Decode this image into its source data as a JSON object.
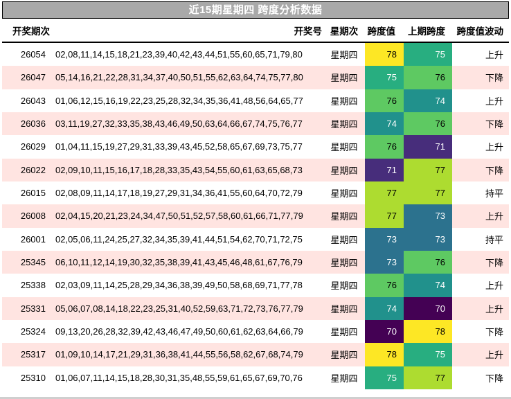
{
  "title": "近15期星期四 跨度分析数据",
  "chart_data": {
    "type": "table",
    "title": "近15期星期四 跨度分析数据",
    "columns": [
      "开奖期次",
      "开奖号",
      "星期次",
      "跨度值",
      "上期跨度",
      "跨度值波动"
    ],
    "rows": [
      {
        "period": "26054",
        "numbers": "02,08,11,14,15,18,21,23,39,40,42,43,44,51,55,60,65,71,79,80",
        "weekday": "星期四",
        "span": "78",
        "prev_span": "75",
        "fluctuation": "上升"
      },
      {
        "period": "26047",
        "numbers": "05,14,16,21,22,28,31,34,37,40,50,51,55,62,63,64,74,75,77,80",
        "weekday": "星期四",
        "span": "75",
        "prev_span": "76",
        "fluctuation": "下降"
      },
      {
        "period": "26043",
        "numbers": "01,06,12,15,16,19,22,23,25,28,32,34,35,36,41,48,56,64,65,77",
        "weekday": "星期四",
        "span": "76",
        "prev_span": "74",
        "fluctuation": "上升"
      },
      {
        "period": "26036",
        "numbers": "03,11,19,27,32,33,35,38,43,46,49,50,63,64,66,67,74,75,76,77",
        "weekday": "星期四",
        "span": "74",
        "prev_span": "76",
        "fluctuation": "下降"
      },
      {
        "period": "26029",
        "numbers": "01,04,11,15,19,27,29,31,33,39,43,45,52,58,65,67,69,73,75,77",
        "weekday": "星期四",
        "span": "76",
        "prev_span": "71",
        "fluctuation": "上升"
      },
      {
        "period": "26022",
        "numbers": "02,09,10,11,15,16,17,18,28,33,35,43,54,55,60,61,63,65,68,73",
        "weekday": "星期四",
        "span": "71",
        "prev_span": "77",
        "fluctuation": "下降"
      },
      {
        "period": "26015",
        "numbers": "02,08,09,11,14,17,18,19,27,29,31,34,36,41,55,60,64,70,72,79",
        "weekday": "星期四",
        "span": "77",
        "prev_span": "77",
        "fluctuation": "持平"
      },
      {
        "period": "26008",
        "numbers": "02,04,15,20,21,23,24,34,47,50,51,52,57,58,60,61,66,71,77,79",
        "weekday": "星期四",
        "span": "77",
        "prev_span": "73",
        "fluctuation": "上升"
      },
      {
        "period": "26001",
        "numbers": "02,05,06,11,24,25,27,32,34,35,39,41,44,51,54,62,70,71,72,75",
        "weekday": "星期四",
        "span": "73",
        "prev_span": "73",
        "fluctuation": "持平"
      },
      {
        "period": "25345",
        "numbers": "06,10,11,12,14,19,30,32,35,38,39,41,43,45,46,48,61,67,76,79",
        "weekday": "星期四",
        "span": "73",
        "prev_span": "76",
        "fluctuation": "下降"
      },
      {
        "period": "25338",
        "numbers": "02,03,09,11,14,25,28,29,34,36,38,39,49,50,58,68,69,71,77,78",
        "weekday": "星期四",
        "span": "76",
        "prev_span": "74",
        "fluctuation": "上升"
      },
      {
        "period": "25331",
        "numbers": "05,06,07,08,14,18,22,23,25,31,40,52,59,63,71,72,73,76,77,79",
        "weekday": "星期四",
        "span": "74",
        "prev_span": "70",
        "fluctuation": "上升"
      },
      {
        "period": "25324",
        "numbers": "09,13,20,26,28,32,39,42,43,46,47,49,50,60,61,62,63,64,66,79",
        "weekday": "星期四",
        "span": "70",
        "prev_span": "78",
        "fluctuation": "下降"
      },
      {
        "period": "25317",
        "numbers": "01,09,10,14,17,21,29,31,36,38,41,44,55,56,58,62,67,68,74,79",
        "weekday": "星期四",
        "span": "78",
        "prev_span": "75",
        "fluctuation": "上升"
      },
      {
        "period": "25310",
        "numbers": "01,06,07,11,14,15,18,28,30,31,35,48,55,59,61,65,67,69,70,76",
        "weekday": "星期四",
        "span": "75",
        "prev_span": "77",
        "fluctuation": "下降"
      }
    ]
  },
  "colors": {
    "title-bg": "#a9a9a9",
    "title-fg": "#ffffff",
    "row-main": "#ffffff",
    "row-alt": "#ffe4e1"
  },
  "value_colors": {
    "70": {
      "bg": "#440154",
      "fg": "#ffffff"
    },
    "71": {
      "bg": "#472d7b",
      "fg": "#ffffff"
    },
    "72": {
      "bg": "#3b528b",
      "fg": "#ffffff"
    },
    "73": {
      "bg": "#2c728e",
      "fg": "#ffffff"
    },
    "74": {
      "bg": "#21918c",
      "fg": "#ffffff"
    },
    "75": {
      "bg": "#28ae80",
      "fg": "#ffffff"
    },
    "76": {
      "bg": "#5ec962",
      "fg": "#000000"
    },
    "77": {
      "bg": "#addc30",
      "fg": "#000000"
    },
    "78": {
      "bg": "#fde725",
      "fg": "#000000"
    }
  }
}
